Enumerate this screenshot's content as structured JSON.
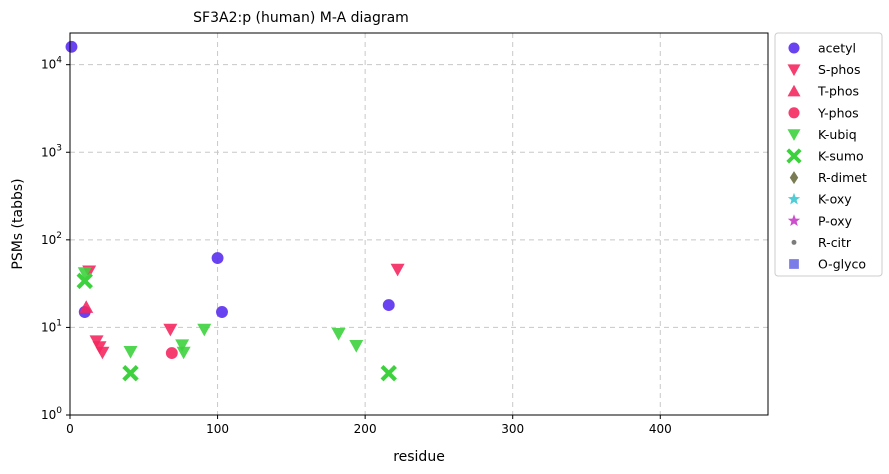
{
  "chart_data": {
    "type": "scatter",
    "title": "SF3A2:p (human) M-A diagram",
    "xlabel": "residue",
    "ylabel": "PSMs (tabbs)",
    "xlim": [
      0,
      473
    ],
    "ylim": [
      1,
      23000
    ],
    "yscale": "log",
    "grid": true,
    "legend_position": "outside-right",
    "x_ticks": [
      {
        "value": 0,
        "label": "0"
      },
      {
        "value": 100,
        "label": "100"
      },
      {
        "value": 200,
        "label": "200"
      },
      {
        "value": 300,
        "label": "300"
      },
      {
        "value": 400,
        "label": "400"
      }
    ],
    "y_ticks": [
      {
        "value": 1,
        "base": "10",
        "exp": "0"
      },
      {
        "value": 10,
        "base": "10",
        "exp": "1"
      },
      {
        "value": 100,
        "base": "10",
        "exp": "2"
      },
      {
        "value": 1000,
        "base": "10",
        "exp": "3"
      },
      {
        "value": 10000,
        "base": "10",
        "exp": "4"
      }
    ],
    "series": [
      {
        "name": "acetyl",
        "marker": "circle",
        "color": "#5a2ff0",
        "points": [
          [
            1,
            16000
          ],
          [
            10,
            15
          ],
          [
            100,
            62
          ],
          [
            103,
            15
          ],
          [
            216,
            18
          ]
        ]
      },
      {
        "name": "S-phos",
        "marker": "triangle-down",
        "color": "#f5285f",
        "points": [
          [
            13,
            44
          ],
          [
            18,
            7
          ],
          [
            20,
            6
          ],
          [
            22,
            5.2
          ],
          [
            68,
            9.5
          ],
          [
            222,
            46
          ]
        ]
      },
      {
        "name": "T-phos",
        "marker": "triangle-up",
        "color": "#f5285f",
        "points": [
          [
            11,
            17
          ]
        ]
      },
      {
        "name": "Y-phos",
        "marker": "circle",
        "color": "#f5285f",
        "points": [
          [
            69,
            5.1
          ]
        ]
      },
      {
        "name": "K-ubiq",
        "marker": "triangle-down",
        "color": "#3dd23d",
        "points": [
          [
            10,
            42
          ],
          [
            41,
            5.3
          ],
          [
            76,
            6.3
          ],
          [
            77,
            5.2
          ],
          [
            91,
            9.5
          ],
          [
            182,
            8.5
          ],
          [
            194,
            6.2
          ]
        ]
      },
      {
        "name": "K-sumo",
        "marker": "x",
        "color": "#3dd23d",
        "points": [
          [
            10,
            34
          ],
          [
            41,
            3
          ],
          [
            216,
            3
          ]
        ]
      },
      {
        "name": "R-dimet",
        "marker": "diamond",
        "color": "#6b6b40",
        "points": []
      },
      {
        "name": "K-oxy",
        "marker": "star",
        "color": "#3cc8d2",
        "points": []
      },
      {
        "name": "P-oxy",
        "marker": "star",
        "color": "#c83cc8",
        "points": []
      },
      {
        "name": "R-citr",
        "marker": "dot",
        "color": "#6e6e6e",
        "points": []
      },
      {
        "name": "O-glyco",
        "marker": "square",
        "color": "#6e6ee6",
        "points": []
      }
    ]
  }
}
